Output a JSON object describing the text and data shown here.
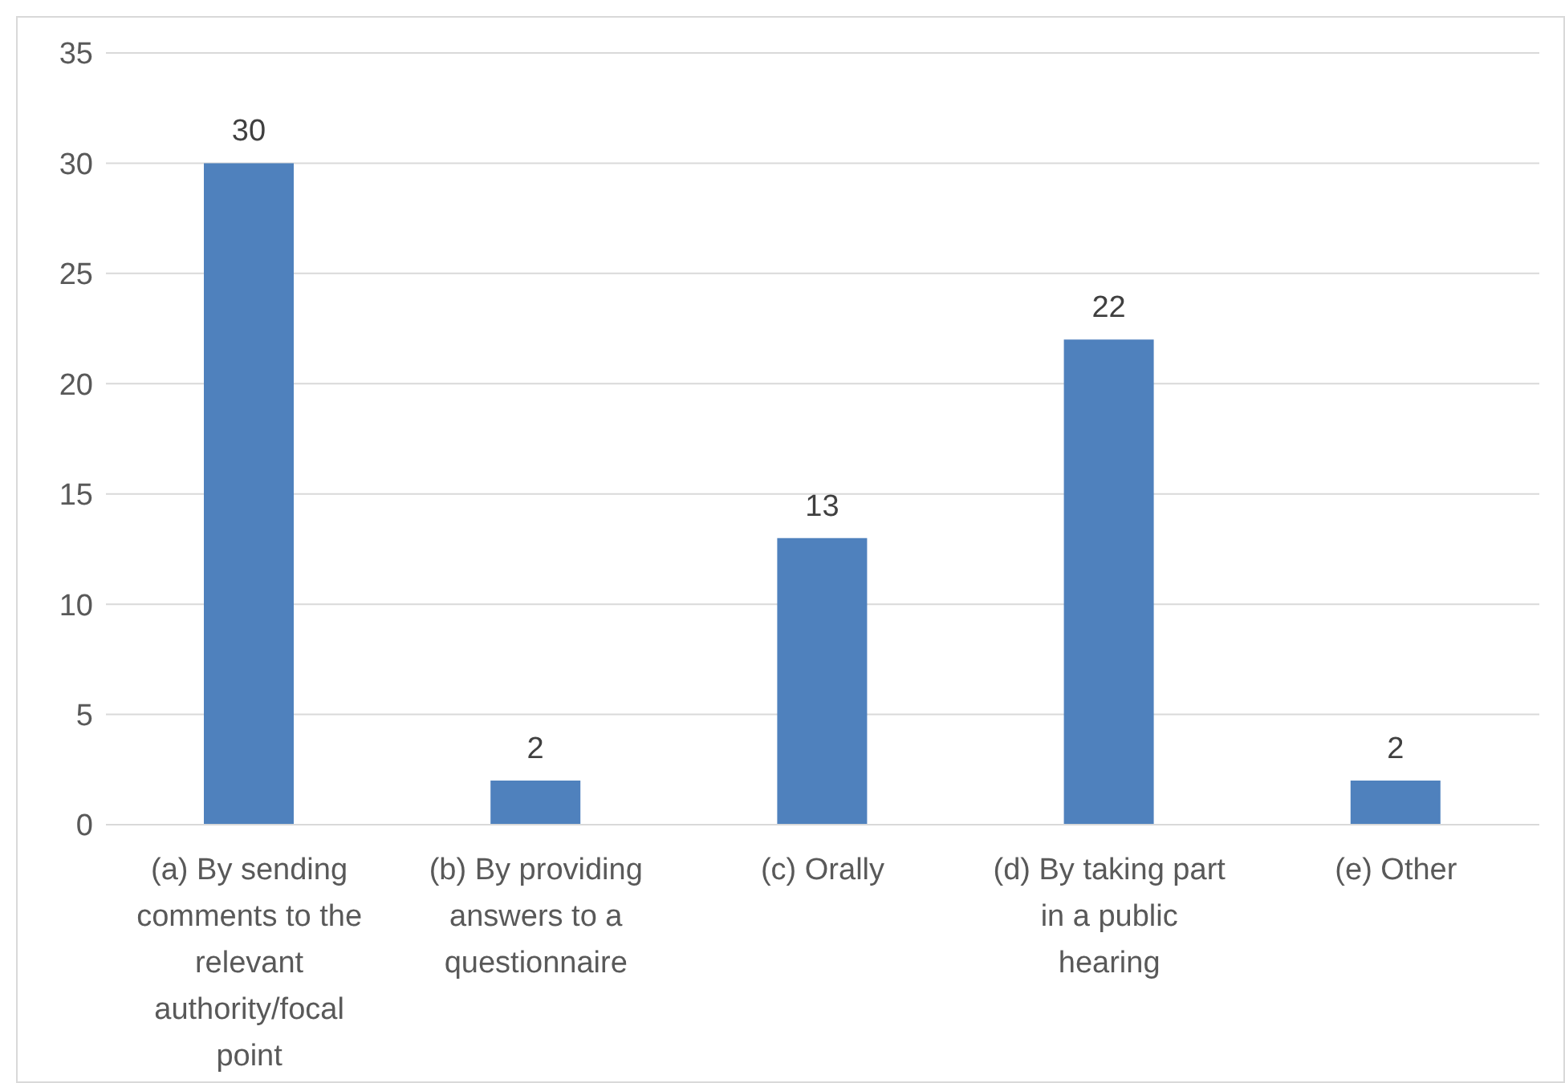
{
  "chart_data": {
    "type": "bar",
    "categories": [
      "(a) By sending comments to the relevant authority/focal point",
      "(b) By providing answers to a questionnaire",
      "(c) Orally",
      "(d) By taking part in a public hearing",
      "(e) Other"
    ],
    "values": [
      30,
      2,
      13,
      22,
      2
    ],
    "color": "#4f81bd",
    "ylim": [
      0,
      35
    ],
    "yticks": [
      0,
      5,
      10,
      15,
      20,
      25,
      30,
      35
    ],
    "grid": "y",
    "data_labels": true
  }
}
